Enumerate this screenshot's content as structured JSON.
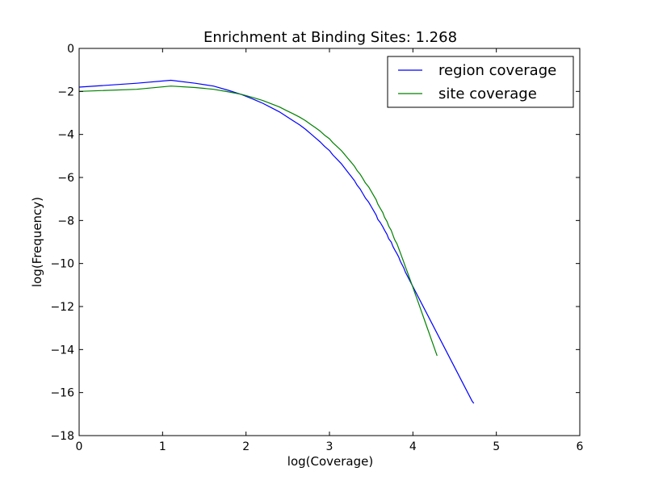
{
  "chart_data": {
    "type": "line",
    "title": "Enrichment at Binding Sites: 1.268",
    "xlabel": "log(Coverage)",
    "ylabel": "log(Frequency)",
    "xlim": [
      0,
      6
    ],
    "ylim": [
      -18,
      0
    ],
    "xticks": [
      0,
      1,
      2,
      3,
      4,
      5,
      6
    ],
    "yticks": [
      0,
      -2,
      -4,
      -6,
      -8,
      -10,
      -12,
      -14,
      -16,
      -18
    ],
    "legend_position": "top-right",
    "series": [
      {
        "name": "region coverage",
        "color": "#0000ff",
        "points": [
          [
            0.0,
            -1.8
          ],
          [
            0.69,
            -1.62
          ],
          [
            1.1,
            -1.48
          ],
          [
            1.39,
            -1.62
          ],
          [
            1.61,
            -1.75
          ],
          [
            1.79,
            -1.95
          ],
          [
            1.95,
            -2.15
          ],
          [
            2.08,
            -2.35
          ],
          [
            2.2,
            -2.55
          ],
          [
            2.3,
            -2.75
          ],
          [
            2.4,
            -2.95
          ],
          [
            2.48,
            -3.15
          ],
          [
            2.56,
            -3.35
          ],
          [
            2.64,
            -3.55
          ],
          [
            2.71,
            -3.75
          ],
          [
            2.77,
            -3.95
          ],
          [
            2.83,
            -4.15
          ],
          [
            2.89,
            -4.35
          ],
          [
            2.94,
            -4.55
          ],
          [
            3.0,
            -4.75
          ],
          [
            3.04,
            -4.95
          ],
          [
            3.09,
            -5.15
          ],
          [
            3.14,
            -5.35
          ],
          [
            3.18,
            -5.55
          ],
          [
            3.22,
            -5.75
          ],
          [
            3.26,
            -5.95
          ],
          [
            3.3,
            -6.15
          ],
          [
            3.33,
            -6.35
          ],
          [
            3.37,
            -6.55
          ],
          [
            3.4,
            -6.75
          ],
          [
            3.43,
            -6.95
          ],
          [
            3.47,
            -7.15
          ],
          [
            3.5,
            -7.35
          ],
          [
            3.53,
            -7.55
          ],
          [
            3.56,
            -7.75
          ],
          [
            3.58,
            -7.95
          ],
          [
            3.61,
            -8.1
          ],
          [
            3.64,
            -8.3
          ],
          [
            3.66,
            -8.45
          ],
          [
            3.69,
            -8.65
          ],
          [
            3.71,
            -8.85
          ],
          [
            3.74,
            -9.0
          ],
          [
            3.76,
            -9.2
          ],
          [
            3.78,
            -9.35
          ],
          [
            3.81,
            -9.55
          ],
          [
            3.83,
            -9.7
          ],
          [
            3.85,
            -9.9
          ],
          [
            3.87,
            -10.05
          ],
          [
            3.89,
            -10.2
          ],
          [
            3.91,
            -10.4
          ],
          [
            3.93,
            -10.55
          ],
          [
            3.95,
            -10.7
          ],
          [
            3.97,
            -10.85
          ],
          [
            3.99,
            -11.0
          ],
          [
            4.01,
            -11.15
          ],
          [
            4.03,
            -11.3
          ],
          [
            4.05,
            -11.45
          ],
          [
            4.07,
            -11.6
          ],
          [
            4.09,
            -11.75
          ],
          [
            4.11,
            -11.9
          ],
          [
            4.13,
            -12.05
          ],
          [
            4.15,
            -12.2
          ],
          [
            4.17,
            -12.35
          ],
          [
            4.19,
            -12.5
          ],
          [
            4.21,
            -12.65
          ],
          [
            4.23,
            -12.8
          ],
          [
            4.25,
            -12.95
          ],
          [
            4.27,
            -13.1
          ],
          [
            4.29,
            -13.25
          ],
          [
            4.31,
            -13.4
          ],
          [
            4.33,
            -13.55
          ],
          [
            4.35,
            -13.7
          ],
          [
            4.37,
            -13.85
          ],
          [
            4.39,
            -14.0
          ],
          [
            4.41,
            -14.15
          ],
          [
            4.43,
            -14.3
          ],
          [
            4.45,
            -14.45
          ],
          [
            4.47,
            -14.6
          ],
          [
            4.49,
            -14.75
          ],
          [
            4.51,
            -14.9
          ],
          [
            4.53,
            -15.05
          ],
          [
            4.55,
            -15.2
          ],
          [
            4.57,
            -15.35
          ],
          [
            4.59,
            -15.5
          ],
          [
            4.61,
            -15.65
          ],
          [
            4.63,
            -15.8
          ],
          [
            4.65,
            -15.95
          ],
          [
            4.67,
            -16.1
          ],
          [
            4.69,
            -16.25
          ],
          [
            4.71,
            -16.4
          ],
          [
            4.73,
            -16.5
          ]
        ]
      },
      {
        "name": "site coverage",
        "color": "#008000",
        "points": [
          [
            0.0,
            -2.0
          ],
          [
            0.69,
            -1.9
          ],
          [
            1.1,
            -1.75
          ],
          [
            1.39,
            -1.82
          ],
          [
            1.61,
            -1.9
          ],
          [
            1.79,
            -2.02
          ],
          [
            1.95,
            -2.14
          ],
          [
            2.08,
            -2.28
          ],
          [
            2.2,
            -2.42
          ],
          [
            2.3,
            -2.57
          ],
          [
            2.4,
            -2.72
          ],
          [
            2.48,
            -2.88
          ],
          [
            2.56,
            -3.03
          ],
          [
            2.64,
            -3.19
          ],
          [
            2.71,
            -3.35
          ],
          [
            2.77,
            -3.52
          ],
          [
            2.83,
            -3.68
          ],
          [
            2.89,
            -3.85
          ],
          [
            2.94,
            -4.03
          ],
          [
            3.0,
            -4.2
          ],
          [
            3.04,
            -4.38
          ],
          [
            3.09,
            -4.56
          ],
          [
            3.14,
            -4.74
          ],
          [
            3.18,
            -4.92
          ],
          [
            3.22,
            -5.11
          ],
          [
            3.26,
            -5.29
          ],
          [
            3.3,
            -5.48
          ],
          [
            3.33,
            -5.67
          ],
          [
            3.37,
            -5.86
          ],
          [
            3.4,
            -6.05
          ],
          [
            3.43,
            -6.25
          ],
          [
            3.47,
            -6.44
          ],
          [
            3.5,
            -6.64
          ],
          [
            3.53,
            -6.84
          ],
          [
            3.56,
            -7.04
          ],
          [
            3.58,
            -7.24
          ],
          [
            3.61,
            -7.44
          ],
          [
            3.64,
            -7.64
          ],
          [
            3.66,
            -7.85
          ],
          [
            3.69,
            -8.05
          ],
          [
            3.71,
            -8.26
          ],
          [
            3.74,
            -8.46
          ],
          [
            3.76,
            -8.67
          ],
          [
            3.78,
            -8.88
          ],
          [
            3.81,
            -9.09
          ],
          [
            3.83,
            -9.3
          ],
          [
            3.85,
            -9.51
          ],
          [
            3.87,
            -9.72
          ],
          [
            3.89,
            -9.93
          ],
          [
            3.91,
            -10.15
          ],
          [
            3.93,
            -10.36
          ],
          [
            3.95,
            -10.57
          ],
          [
            3.97,
            -10.79
          ],
          [
            3.99,
            -11.0
          ],
          [
            4.01,
            -11.22
          ],
          [
            4.03,
            -11.44
          ],
          [
            4.05,
            -11.65
          ],
          [
            4.07,
            -11.87
          ],
          [
            4.09,
            -12.09
          ],
          [
            4.11,
            -12.31
          ],
          [
            4.13,
            -12.53
          ],
          [
            4.15,
            -12.75
          ],
          [
            4.17,
            -12.97
          ],
          [
            4.19,
            -13.19
          ],
          [
            4.21,
            -13.41
          ],
          [
            4.23,
            -13.63
          ],
          [
            4.25,
            -13.85
          ],
          [
            4.27,
            -14.07
          ],
          [
            4.29,
            -14.29
          ]
        ]
      }
    ]
  }
}
